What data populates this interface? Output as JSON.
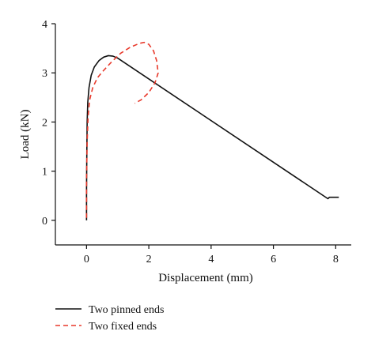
{
  "chart_data": {
    "type": "line",
    "xlabel": "Displacement (mm)",
    "ylabel": "Load (kN)",
    "xlim": [
      -1,
      8.5
    ],
    "ylim": [
      -0.5,
      4
    ],
    "xticks": [
      0,
      2,
      4,
      6,
      8
    ],
    "yticks": [
      0,
      1,
      2,
      3,
      4
    ],
    "grid": false,
    "legend_position": "bottom-left below plot",
    "series": [
      {
        "name": "Two pinned ends",
        "color": "#111111",
        "dash": "solid",
        "points": [
          [
            0.0,
            0.0
          ],
          [
            0.0,
            0.6
          ],
          [
            0.01,
            1.4
          ],
          [
            0.02,
            2.0
          ],
          [
            0.04,
            2.4
          ],
          [
            0.08,
            2.7
          ],
          [
            0.15,
            2.95
          ],
          [
            0.25,
            3.12
          ],
          [
            0.4,
            3.25
          ],
          [
            0.55,
            3.32
          ],
          [
            0.7,
            3.35
          ],
          [
            0.85,
            3.34
          ],
          [
            1.0,
            3.3
          ],
          [
            7.75,
            0.44
          ],
          [
            7.8,
            0.47
          ],
          [
            7.9,
            0.47
          ],
          [
            8.1,
            0.47
          ]
        ]
      },
      {
        "name": "Two fixed ends",
        "color": "#e8392b",
        "dash": "dashed",
        "points": [
          [
            0.0,
            0.05
          ],
          [
            0.0,
            0.8
          ],
          [
            0.02,
            1.6
          ],
          [
            0.05,
            2.1
          ],
          [
            0.1,
            2.45
          ],
          [
            0.2,
            2.7
          ],
          [
            0.35,
            2.9
          ],
          [
            0.55,
            3.05
          ],
          [
            0.8,
            3.22
          ],
          [
            1.1,
            3.4
          ],
          [
            1.4,
            3.52
          ],
          [
            1.7,
            3.6
          ],
          [
            1.85,
            3.62
          ],
          [
            2.0,
            3.58
          ],
          [
            2.15,
            3.45
          ],
          [
            2.25,
            3.25
          ],
          [
            2.3,
            3.0
          ],
          [
            2.2,
            2.8
          ],
          [
            2.0,
            2.6
          ],
          [
            1.75,
            2.45
          ],
          [
            1.55,
            2.38
          ]
        ]
      }
    ]
  }
}
